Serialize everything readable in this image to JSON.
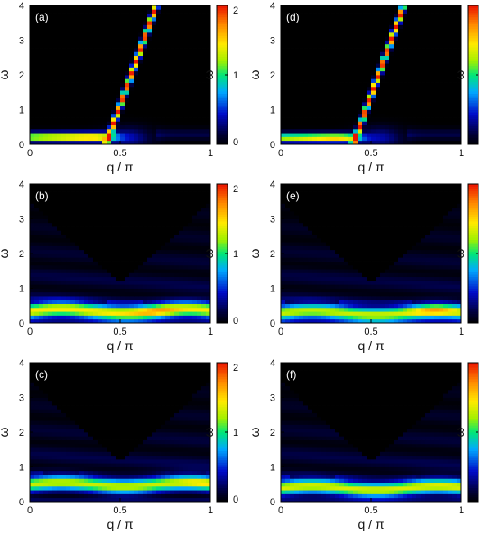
{
  "chart_data": [
    {
      "type": "heatmap",
      "panel_label": "(a)",
      "xlabel": "q / π",
      "ylabel": "ω",
      "xlim": [
        0,
        1
      ],
      "ylim": [
        0,
        4
      ],
      "xticks": [
        "0",
        "0.5",
        "1"
      ],
      "yticks": [
        "0",
        "1",
        "2",
        "3",
        "4"
      ],
      "colorbar": {
        "range": [
          0,
          2
        ],
        "ticks": [
          "0",
          "1",
          "2"
        ]
      },
      "features": {
        "low_band": {
          "omega": 0.22,
          "x_start": 0.0,
          "x_end": 0.45,
          "intensity": 1.9
        },
        "dispersive_branch": {
          "x_start": 0.42,
          "x_end": 0.7,
          "omega_start": 0.0,
          "omega_end": 4.0,
          "intensity": 2.0
        }
      }
    },
    {
      "type": "heatmap",
      "panel_label": "(b)",
      "xlabel": "q / π",
      "ylabel": "ω",
      "xlim": [
        0,
        1
      ],
      "ylim": [
        0,
        4
      ],
      "xticks": [
        "0",
        "0.5",
        "1"
      ],
      "yticks": [
        "0",
        "1",
        "2",
        "3",
        "4"
      ],
      "colorbar": {
        "range": [
          0,
          2
        ],
        "ticks": [
          "0",
          "1",
          "2"
        ]
      },
      "features": {
        "band_omega": 0.35,
        "band_intensity": 1.45,
        "peak_x": 0.7,
        "peak_intensity": 1.7
      }
    },
    {
      "type": "heatmap",
      "panel_label": "(c)",
      "xlabel": "q / π",
      "ylabel": "ω",
      "xlim": [
        0,
        1
      ],
      "ylim": [
        0,
        4
      ],
      "xticks": [
        "0",
        "0.5",
        "1"
      ],
      "yticks": [
        "0",
        "1",
        "2",
        "3",
        "4"
      ],
      "colorbar": {
        "range": [
          0,
          2
        ],
        "ticks": [
          "0",
          "1",
          "2"
        ]
      },
      "features": {
        "band_omega": 0.5,
        "band_intensity": 1.3,
        "peak_x": 0.95,
        "peak_intensity": 1.5
      }
    },
    {
      "type": "heatmap",
      "panel_label": "(d)",
      "xlabel": "q / π",
      "ylabel": "ω",
      "xlim": [
        0,
        1
      ],
      "ylim": [
        0,
        4
      ],
      "xticks": [
        "0",
        "0.5",
        "1"
      ],
      "yticks": [
        "0",
        "1",
        "2",
        "3",
        "4"
      ],
      "colorbar": {
        "range": [
          0,
          2
        ],
        "ticks": [
          "0",
          "1",
          "2"
        ]
      },
      "features": {
        "low_band": {
          "omega": 0.2,
          "x_start": 0.0,
          "x_end": 0.42,
          "intensity": 1.8
        },
        "dispersive_branch": {
          "x_start": 0.4,
          "x_end": 0.68,
          "omega_start": 0.0,
          "omega_end": 4.0,
          "intensity": 2.0
        }
      }
    },
    {
      "type": "heatmap",
      "panel_label": "(e)",
      "xlabel": "q / π",
      "ylabel": "ω",
      "xlim": [
        0,
        1
      ],
      "ylim": [
        0,
        4
      ],
      "xticks": [
        "0",
        "0.5",
        "1"
      ],
      "yticks": [
        "0",
        "1",
        "2",
        "3",
        "4"
      ],
      "colorbar": {
        "range": [
          0,
          2
        ],
        "ticks": [
          "0",
          "1",
          "2"
        ]
      },
      "features": {
        "band_omega": 0.3,
        "band_intensity": 1.3,
        "peak_x": 0.85,
        "peak_intensity": 1.7
      }
    },
    {
      "type": "heatmap",
      "panel_label": "(f)",
      "xlabel": "q / π",
      "ylabel": "ω",
      "xlim": [
        0,
        1
      ],
      "ylim": [
        0,
        4
      ],
      "xticks": [
        "0",
        "0.5",
        "1"
      ],
      "yticks": [
        "0",
        "1",
        "2",
        "3",
        "4"
      ],
      "colorbar": {
        "range": [
          0,
          2
        ],
        "ticks": [
          "0",
          "1",
          "2"
        ]
      },
      "features": {
        "band_omega": 0.4,
        "band_intensity": 1.35,
        "peak_x": 0.9,
        "peak_intensity": 1.4
      }
    }
  ]
}
